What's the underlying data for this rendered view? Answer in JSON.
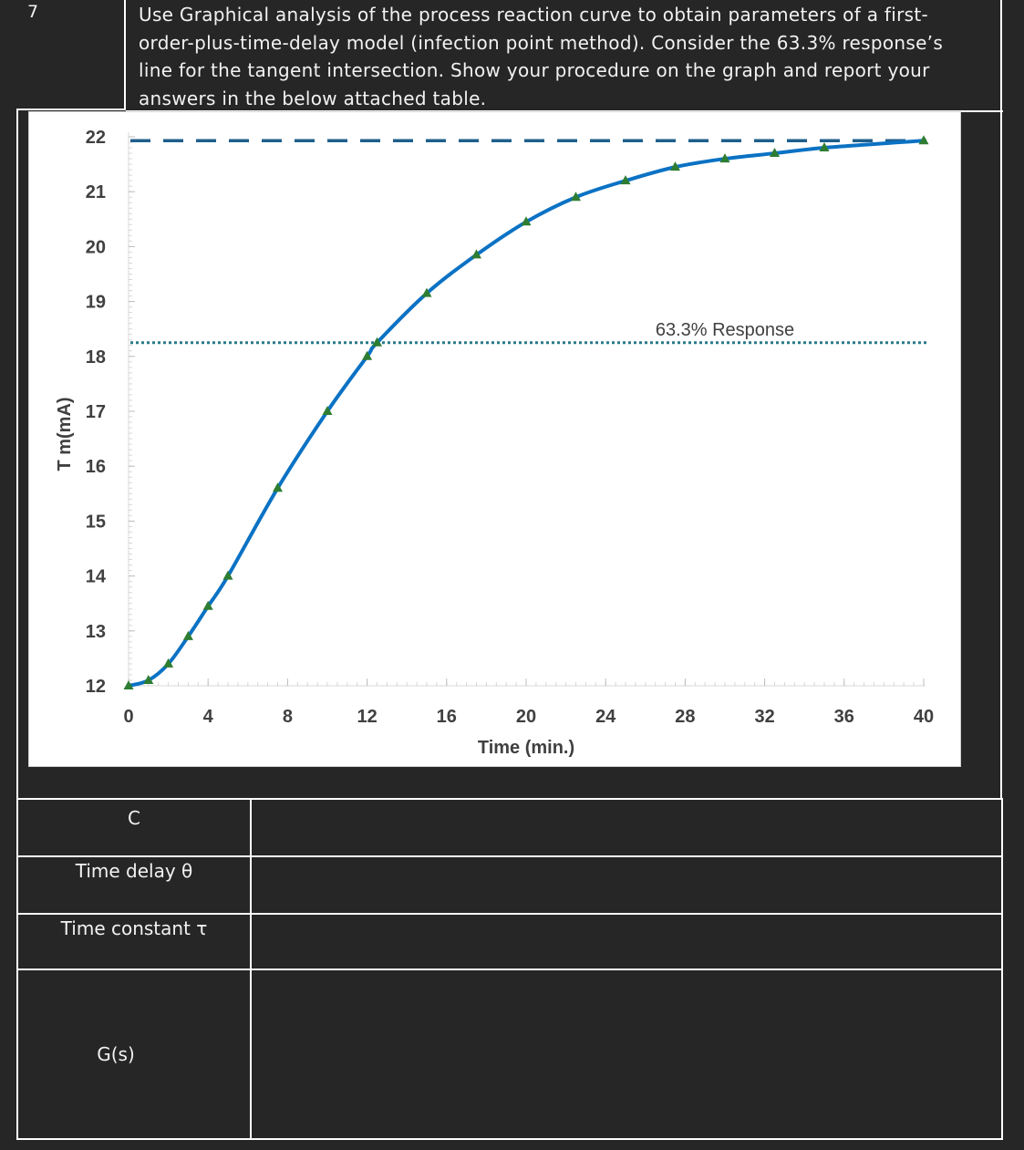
{
  "question": {
    "number": "7",
    "lines": [
      "Use Graphical analysis of the process reaction curve to obtain parameters of a first-",
      "order-plus-time-delay model (infection point method). Consider the 63.3% response’s",
      "line for the tangent intersection. Show your procedure on the graph and report your",
      "answers in the below attached table."
    ]
  },
  "chart_data": {
    "type": "line",
    "xlabel": "Time (min.)",
    "ylabel": "T m(mA)",
    "xlim": [
      0,
      40
    ],
    "ylim": [
      12,
      22
    ],
    "x_ticks": [
      0,
      4,
      8,
      12,
      16,
      20,
      24,
      28,
      32,
      36,
      40
    ],
    "y_ticks": [
      12,
      13,
      14,
      15,
      16,
      17,
      18,
      19,
      20,
      21,
      22
    ],
    "series": [
      {
        "x": [
          0,
          1,
          2,
          3,
          4,
          5,
          7.5,
          10,
          12,
          12.5,
          15,
          17.5,
          20,
          22.5,
          25,
          27.5,
          30,
          32.5,
          35,
          40
        ],
        "y": [
          12.0,
          12.1,
          12.4,
          12.9,
          13.45,
          14.0,
          15.6,
          17.0,
          18.0,
          18.25,
          19.15,
          19.85,
          20.45,
          20.9,
          21.2,
          21.45,
          21.6,
          21.7,
          21.8,
          21.93
        ]
      }
    ],
    "reference_lines": [
      {
        "y": 21.93,
        "style": "dashed",
        "color": "#1f5f8b"
      },
      {
        "y": 18.25,
        "style": "dotted",
        "color": "#2a7a8a",
        "label": "63.3% Response"
      }
    ],
    "colors": {
      "line": "#0b72c4",
      "marker": "#2e7d32"
    },
    "grid": false,
    "legend": "none"
  },
  "table": {
    "rows": [
      {
        "label": "C",
        "value": ""
      },
      {
        "label": "Time delay θ",
        "value": ""
      },
      {
        "label": "Time constant τ",
        "value": ""
      },
      {
        "label": "G(s)",
        "value": ""
      }
    ]
  }
}
